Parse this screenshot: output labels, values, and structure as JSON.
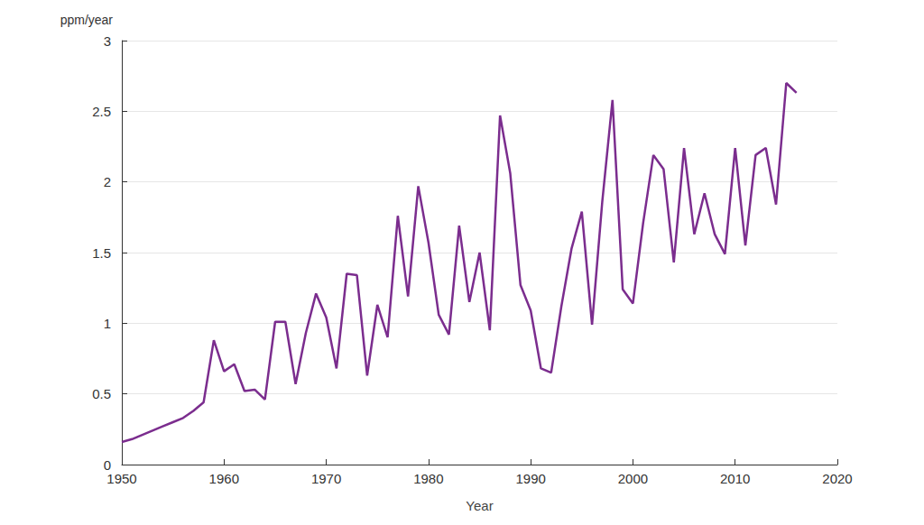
{
  "chart_data": {
    "type": "line",
    "x_label": "Year",
    "y_label": "ppm/year",
    "x": [
      1950,
      1951,
      1952,
      1953,
      1954,
      1955,
      1956,
      1957,
      1958,
      1959,
      1960,
      1961,
      1962,
      1963,
      1964,
      1965,
      1966,
      1967,
      1968,
      1969,
      1970,
      1971,
      1972,
      1973,
      1974,
      1975,
      1976,
      1977,
      1978,
      1979,
      1980,
      1981,
      1982,
      1983,
      1984,
      1985,
      1986,
      1987,
      1988,
      1989,
      1990,
      1991,
      1992,
      1993,
      1994,
      1995,
      1996,
      1997,
      1998,
      1999,
      2000,
      2001,
      2002,
      2003,
      2004,
      2005,
      2006,
      2007,
      2008,
      2009,
      2010,
      2011,
      2012,
      2013,
      2014,
      2015,
      2016
    ],
    "values": [
      0.16,
      0.18,
      0.21,
      0.24,
      0.27,
      0.3,
      0.33,
      0.38,
      0.44,
      0.88,
      0.66,
      0.71,
      0.52,
      0.53,
      0.46,
      1.01,
      1.01,
      0.57,
      0.93,
      1.21,
      1.04,
      0.68,
      1.35,
      1.34,
      0.63,
      1.13,
      0.9,
      1.76,
      1.19,
      1.97,
      1.57,
      1.06,
      0.92,
      1.69,
      1.15,
      1.5,
      0.95,
      2.47,
      2.06,
      1.27,
      1.09,
      0.68,
      0.65,
      1.12,
      1.53,
      1.79,
      0.99,
      1.86,
      2.58,
      1.24,
      1.14,
      1.71,
      2.19,
      2.09,
      1.43,
      2.24,
      1.63,
      1.92,
      1.63,
      1.49,
      2.24,
      1.55,
      2.19,
      2.24,
      1.84,
      2.7,
      2.63
    ],
    "color": "#7b2d8e",
    "xlim": [
      1950,
      2020
    ],
    "xticks": [
      1950,
      1960,
      1970,
      1980,
      1990,
      2000,
      2010,
      2020
    ],
    "ylim": [
      0,
      3
    ],
    "yticks": [
      0,
      0.5,
      1,
      1.5,
      2,
      2.5,
      3
    ],
    "grid": true
  }
}
